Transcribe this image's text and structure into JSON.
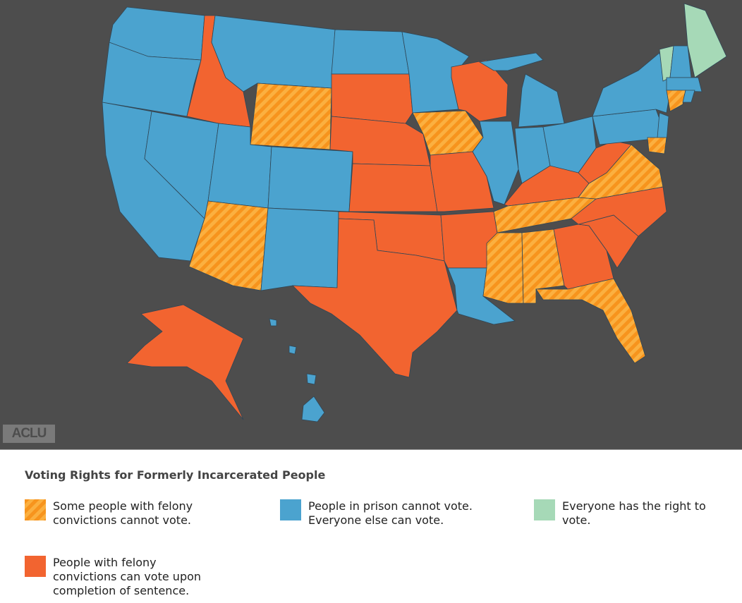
{
  "logo": "ACLU",
  "legend": {
    "title": "Voting Rights for Formerly Incarcerated People",
    "items": [
      {
        "label": "Some people with felony convictions cannot vote.",
        "color": "#f7941d",
        "stripe_color": "#fbb040",
        "pattern": "hatch"
      },
      {
        "label": "People in prison cannot vote. Everyone else can vote.",
        "color": "#4ba3cf"
      },
      {
        "label": "Everyone has the right to vote.",
        "color": "#a6d9b7"
      },
      {
        "label": "People with felony convictions can vote upon completion of sentence.",
        "color": "#f26430"
      }
    ]
  }
}
